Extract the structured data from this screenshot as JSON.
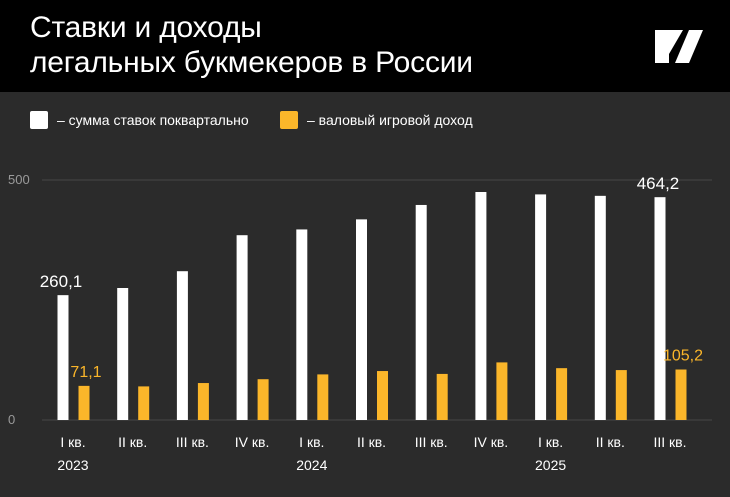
{
  "header": {
    "title_line1": "Ставки и доходы",
    "title_line2": "легальных букмекеров в России",
    "logo_icon": "n-logo-icon"
  },
  "legend": [
    {
      "label": "– сумма ставок поквартально",
      "color": "#ffffff"
    },
    {
      "label": "– валовый игровой доход",
      "color": "#fbb62a"
    }
  ],
  "chart_data": {
    "type": "bar",
    "title": "Ставки и доходы легальных букмекеров в России",
    "categories": [
      "I кв.",
      "II кв.",
      "III кв.",
      "IV кв.",
      "I кв.",
      "II кв.",
      "III кв.",
      "IV кв.",
      "I кв.",
      "II кв.",
      "III кв."
    ],
    "years": [
      {
        "label": "2023",
        "index": 0
      },
      {
        "label": "2024",
        "index": 4
      },
      {
        "label": "2025",
        "index": 8
      }
    ],
    "series": [
      {
        "name": "сумма ставок поквартально",
        "color": "#ffffff",
        "values": [
          260.1,
          275,
          310,
          385,
          397,
          418,
          448,
          475,
          470,
          467,
          464.2
        ]
      },
      {
        "name": "валовый игровой доход",
        "color": "#fbb62a",
        "values": [
          71.1,
          70,
          77,
          85,
          95,
          102,
          96,
          120,
          108,
          104,
          105.2
        ]
      }
    ],
    "data_labels": [
      {
        "series": 0,
        "index": 0,
        "text": "260,1"
      },
      {
        "series": 0,
        "index": 10,
        "text": "464,2"
      },
      {
        "series": 1,
        "index": 0,
        "text": "71,1"
      },
      {
        "series": 1,
        "index": 10,
        "text": "105,2"
      }
    ],
    "yticks": [
      0,
      500
    ],
    "ylim": [
      0,
      500
    ],
    "grid": true,
    "legend_position": "top-left"
  }
}
